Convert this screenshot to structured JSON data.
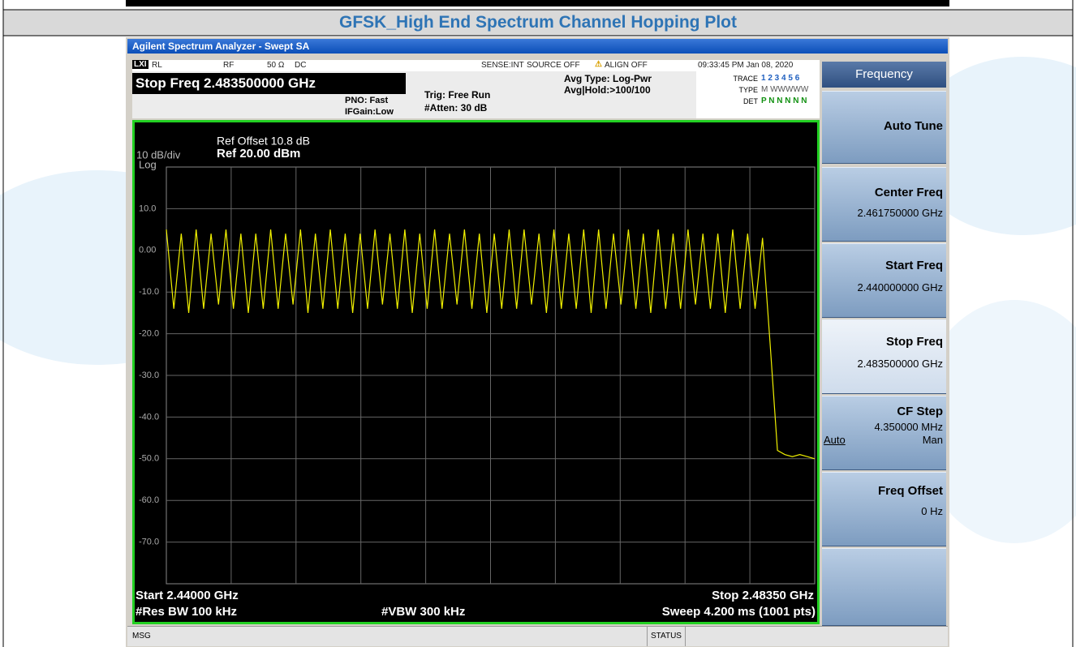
{
  "header": {
    "title": "GFSK_High End Spectrum Channel Hopping Plot"
  },
  "window": {
    "title": "Agilent Spectrum Analyzer - Swept SA"
  },
  "status_row": {
    "rl": "RL",
    "rf": "RF",
    "impedance": "50 Ω",
    "coupling": "DC",
    "sense": "SENSE:INT",
    "source": "SOURCE OFF",
    "align": "ALIGN OFF",
    "datetime": "09:33:45 PM Jan 08, 2020"
  },
  "info": {
    "active": "Stop Freq 2.483500000 GHz",
    "pno": "PNO: Fast",
    "ifgain": "IFGain:Low",
    "trig": "Trig: Free Run",
    "atten": "#Atten: 30 dB",
    "avg_type": "Avg Type: Log-Pwr",
    "avg_hold": "Avg|Hold:>100/100",
    "trace_label": "TRACE",
    "trace": "1 2 3 4 5 6",
    "type_label": "TYPE",
    "type": "M WWWWW",
    "det_label": "DET",
    "det": "P N N N N N"
  },
  "softkeys": {
    "menu": "Frequency",
    "auto_tune": "Auto Tune",
    "center_label": "Center Freq",
    "center_value": "2.461750000 GHz",
    "start_label": "Start Freq",
    "start_value": "2.440000000 GHz",
    "stop_label": "Stop Freq",
    "stop_value": "2.483500000 GHz",
    "cf_label": "CF Step",
    "cf_value": "4.350000 MHz",
    "cf_auto": "Auto",
    "cf_man": "Man",
    "offset_label": "Freq Offset",
    "offset_value": "0 Hz"
  },
  "footer": {
    "msg": "MSG",
    "status": "STATUS"
  },
  "chart_data": {
    "type": "line",
    "ref_offset": "Ref Offset 10.8 dB",
    "scale": "10 dB/div",
    "scale_type": "Log",
    "ref_level": "Ref 20.00 dBm",
    "start": "Start 2.44000 GHz",
    "stop": "Stop 2.48350 GHz",
    "rbw": "#Res BW 100 kHz",
    "vbw": "#VBW 300 kHz",
    "sweep": "Sweep  4.200 ms (1001 pts)",
    "color": "#f0f000",
    "xlim": [
      2.44,
      2.4835
    ],
    "ylim": [
      -80,
      20
    ],
    "yticks": [
      {
        "value": 10,
        "label": "10.0"
      },
      {
        "value": 0,
        "label": "0.00"
      },
      {
        "value": -10,
        "label": "-10.0"
      },
      {
        "value": -20,
        "label": "-20.0"
      },
      {
        "value": -30,
        "label": "-30.0"
      },
      {
        "value": -40,
        "label": "-40.0"
      },
      {
        "value": -50,
        "label": "-50.0"
      },
      {
        "value": -60,
        "label": "-60.0"
      },
      {
        "value": -70,
        "label": "-70.0"
      }
    ],
    "grid": true,
    "x": [
      2.44,
      2.4405,
      2.441,
      2.4415,
      2.442,
      2.4425,
      2.443,
      2.4435,
      2.444,
      2.4445,
      2.445,
      2.4455,
      2.446,
      2.4465,
      2.447,
      2.4475,
      2.448,
      2.4485,
      2.449,
      2.4495,
      2.45,
      2.4505,
      2.451,
      2.4515,
      2.452,
      2.4525,
      2.453,
      2.4535,
      2.454,
      2.4545,
      2.455,
      2.4555,
      2.456,
      2.4565,
      2.457,
      2.4575,
      2.458,
      2.4585,
      2.459,
      2.4595,
      2.46,
      2.4605,
      2.461,
      2.4615,
      2.462,
      2.4625,
      2.463,
      2.4635,
      2.464,
      2.4645,
      2.465,
      2.4655,
      2.466,
      2.4665,
      2.467,
      2.4675,
      2.468,
      2.4685,
      2.469,
      2.4695,
      2.47,
      2.4705,
      2.471,
      2.4715,
      2.472,
      2.4725,
      2.473,
      2.4735,
      2.474,
      2.4745,
      2.475,
      2.4755,
      2.476,
      2.4765,
      2.477,
      2.4775,
      2.478,
      2.4785,
      2.479,
      2.4795,
      2.48,
      2.4805,
      2.481,
      2.4815,
      2.482,
      2.4825,
      2.483,
      2.4835
    ],
    "values": [
      5,
      -14,
      4,
      -15,
      5,
      -14,
      4,
      -13,
      5,
      -14,
      4,
      -15,
      4,
      -14,
      5,
      -14,
      4,
      -13,
      5,
      -15,
      4,
      -14,
      5,
      -14,
      4,
      -15,
      4,
      -14,
      5,
      -13,
      4,
      -14,
      5,
      -15,
      4,
      -14,
      5,
      -14,
      4,
      -13,
      5,
      -14,
      4,
      -15,
      4,
      -14,
      5,
      -14,
      5,
      -13,
      4,
      -15,
      5,
      -14,
      4,
      -14,
      5,
      -15,
      5,
      -14,
      4,
      -13,
      5,
      -14,
      4,
      -15,
      5,
      -14,
      4,
      -14,
      5,
      -13,
      4,
      -14,
      4,
      -15,
      5,
      -14,
      4,
      -14,
      3,
      -22,
      -48,
      -49,
      -49.5,
      -49,
      -49.5,
      -50
    ]
  }
}
